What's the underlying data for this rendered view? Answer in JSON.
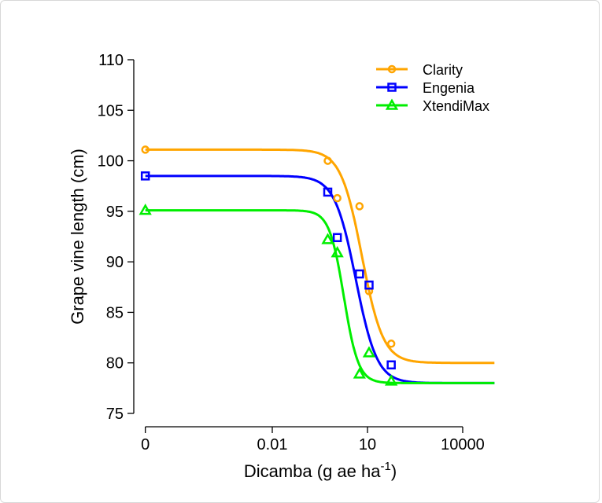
{
  "chart_data": {
    "type": "scatter",
    "xlabel": "Dicamba (g ae ha",
    "xlabel_sup": "-1",
    "xlabel_close": ")",
    "ylabel": "Grape vine length (cm)",
    "x_scale": "log",
    "x_ticks": [
      {
        "value": 0,
        "label": "0"
      },
      {
        "value": 0.01,
        "label": "0.01"
      },
      {
        "value": 10,
        "label": "10"
      },
      {
        "value": 10000,
        "label": "10000"
      }
    ],
    "y_ticks": [
      75,
      80,
      85,
      90,
      95,
      100,
      105,
      110
    ],
    "ylim": [
      75,
      110
    ],
    "xlim": [
      0,
      100000
    ],
    "grid": false,
    "legend_placement": "top-right",
    "series": [
      {
        "name": "Clarity",
        "color": "#FFA500",
        "marker": "circle",
        "x": [
          0,
          0.56,
          1.12,
          5.6,
          11.2,
          56
        ],
        "y": [
          101.1,
          100.0,
          96.3,
          95.5,
          87.1,
          81.9
        ],
        "fit": {
          "upper": 101.1,
          "lower": 80.0,
          "ed50": 6.7,
          "slope": 1.3
        }
      },
      {
        "name": "Engenia",
        "color": "#0000FF",
        "marker": "square",
        "x": [
          0,
          0.56,
          1.12,
          5.6,
          11.2,
          56
        ],
        "y": [
          98.5,
          96.9,
          92.4,
          88.8,
          87.7,
          79.8
        ],
        "fit": {
          "upper": 98.5,
          "lower": 78.0,
          "ed50": 4.3,
          "slope": 1.3
        }
      },
      {
        "name": "XtendiMax",
        "color": "#00EE00",
        "marker": "triangle",
        "x": [
          0,
          0.56,
          1.12,
          5.6,
          11.2,
          56
        ],
        "y": [
          95.1,
          92.2,
          90.9,
          78.9,
          81.0,
          78.2
        ],
        "fit": {
          "upper": 95.1,
          "lower": 78.0,
          "ed50": 1.8,
          "slope": 1.9
        }
      }
    ]
  }
}
